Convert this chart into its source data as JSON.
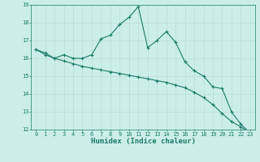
{
  "xlabel": "Humidex (Indice chaleur)",
  "ylabel": "",
  "background_color": "#cceee8",
  "grid_color": "#b8ddd8",
  "line_color": "#1a7a6a",
  "x_data": [
    0,
    1,
    2,
    3,
    4,
    5,
    6,
    7,
    8,
    9,
    10,
    11,
    12,
    13,
    14,
    15,
    16,
    17,
    18,
    19,
    20,
    21,
    22,
    23
  ],
  "line1_y": [
    16.5,
    16.3,
    16.0,
    16.2,
    16.0,
    16.0,
    16.2,
    17.1,
    17.3,
    17.9,
    18.3,
    18.9,
    16.6,
    17.0,
    17.5,
    16.9,
    15.8,
    15.3,
    15.0,
    14.4,
    14.3,
    13.0,
    12.3,
    11.8
  ],
  "line2_y": [
    16.5,
    16.2,
    16.0,
    15.85,
    15.7,
    15.55,
    15.45,
    15.35,
    15.25,
    15.15,
    15.05,
    14.95,
    14.85,
    14.75,
    14.65,
    14.5,
    14.35,
    14.1,
    13.8,
    13.4,
    12.9,
    12.45,
    12.15,
    11.8
  ],
  "ylim": [
    12,
    19
  ],
  "xlim": [
    -0.5,
    23.5
  ],
  "yticks": [
    12,
    13,
    14,
    15,
    16,
    17,
    18,
    19
  ],
  "xticks": [
    0,
    1,
    2,
    3,
    4,
    5,
    6,
    7,
    8,
    9,
    10,
    11,
    12,
    13,
    14,
    15,
    16,
    17,
    18,
    19,
    20,
    21,
    22,
    23
  ],
  "marker": "+",
  "markersize": 3,
  "linewidth": 0.8,
  "tick_fontsize": 5,
  "label_fontsize": 6.5,
  "title_fontsize": 7
}
